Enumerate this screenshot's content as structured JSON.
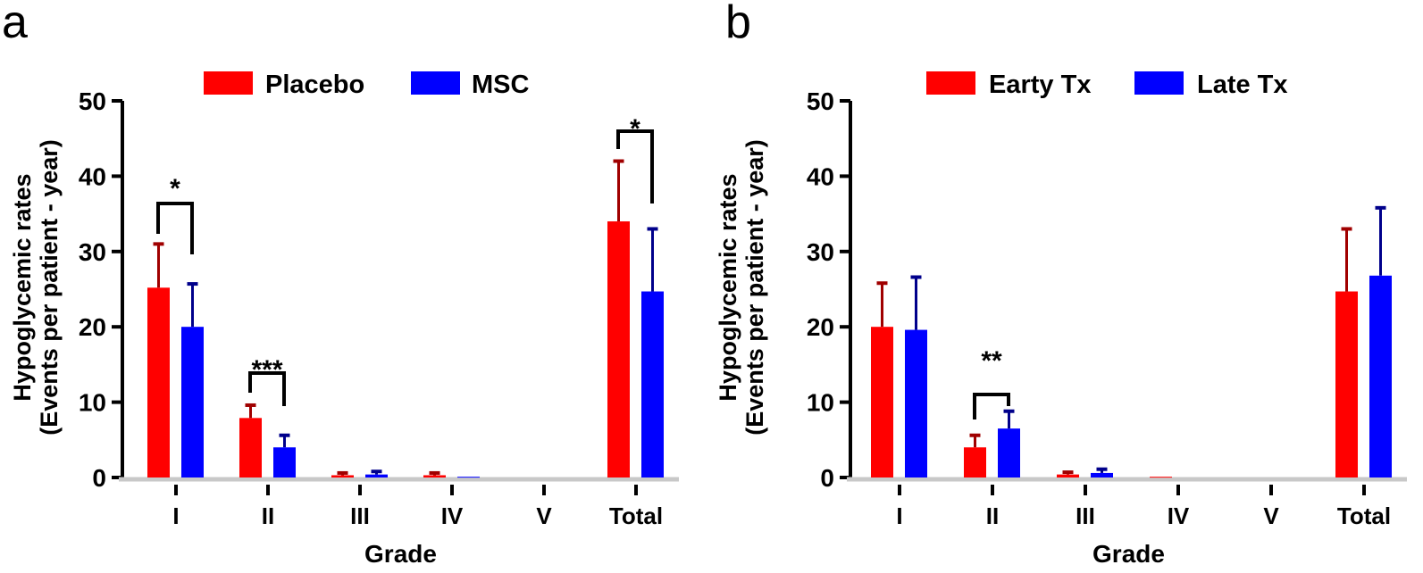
{
  "chart_data": [
    {
      "panel": "a",
      "type": "bar",
      "xlabel": "Grade",
      "ylabel": [
        "Hypoglycemic rates",
        "(Events per patient - year)"
      ],
      "ylim": [
        0,
        50
      ],
      "yticks": [
        0,
        10,
        20,
        30,
        40,
        50
      ],
      "categories": [
        "I",
        "II",
        "III",
        "IV",
        "V",
        "Total"
      ],
      "legend_placement": "top",
      "series": [
        {
          "name": "Placebo",
          "color": "#ff0000",
          "error_color": "#a00000",
          "values": [
            25.2,
            7.9,
            0.3,
            0.3,
            0,
            34.0
          ],
          "errors": [
            5.8,
            1.7,
            0.3,
            0.3,
            0,
            8.0
          ]
        },
        {
          "name": "MSC",
          "color": "#0000ff",
          "error_color": "#00008b",
          "values": [
            20.0,
            4.0,
            0.4,
            0.1,
            0,
            24.7
          ],
          "errors": [
            5.7,
            1.6,
            0.4,
            0,
            0,
            8.3
          ]
        }
      ],
      "significance": [
        {
          "category": "I",
          "label": "*"
        },
        {
          "category": "II",
          "label": "***"
        },
        {
          "category": "Total",
          "label": "*"
        }
      ]
    },
    {
      "panel": "b",
      "type": "bar",
      "xlabel": "Grade",
      "ylabel": [
        "Hypoglycemic rates",
        "(Events per patient - year)"
      ],
      "ylim": [
        0,
        50
      ],
      "yticks": [
        0,
        10,
        20,
        30,
        40,
        50
      ],
      "categories": [
        "I",
        "II",
        "III",
        "IV",
        "V",
        "Total"
      ],
      "legend_placement": "top",
      "series": [
        {
          "name": "Earty Tx",
          "color": "#ff0000",
          "error_color": "#a00000",
          "values": [
            20.0,
            4.0,
            0.4,
            0.1,
            0,
            24.7
          ],
          "errors": [
            5.8,
            1.6,
            0.3,
            0,
            0,
            8.3
          ]
        },
        {
          "name": "Late Tx",
          "color": "#0000ff",
          "error_color": "#00008b",
          "values": [
            19.6,
            6.5,
            0.6,
            0,
            0,
            26.8
          ],
          "errors": [
            7.0,
            2.3,
            0.5,
            0,
            0,
            9.0
          ]
        }
      ],
      "significance": [
        {
          "category": "II",
          "label": "**"
        }
      ]
    }
  ]
}
